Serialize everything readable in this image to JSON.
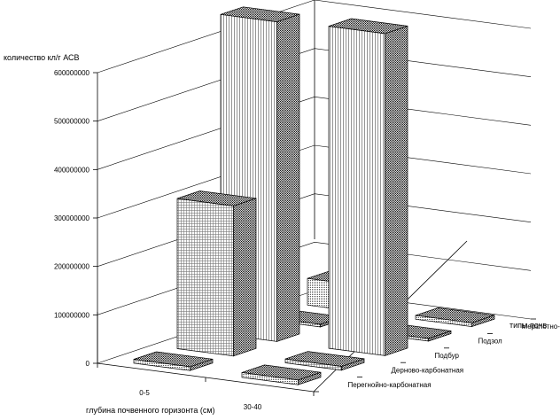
{
  "chart_data": {
    "type": "bar3d",
    "ylabel": "количество кл/г АСВ",
    "xlabel": "глубина почвенного горизонта (см)",
    "zlabel": "типы почв",
    "x_categories": [
      "0-5",
      "30-40"
    ],
    "series": [
      {
        "name": "Перегнойно-карбонатная",
        "values": [
          8000000,
          10000000
        ]
      },
      {
        "name": "Дерново-карбонатная",
        "values": [
          310000000,
          8000000
        ]
      },
      {
        "name": "Подбур",
        "values": [
          660000000,
          665000000
        ]
      },
      {
        "name": "Подзол",
        "values": [
          4000000,
          3000000
        ]
      },
      {
        "name": "Мерзлотно-таёжная",
        "values": [
          55000000,
          8000000
        ]
      }
    ],
    "y_ticks": [
      "0",
      "100000000",
      "200000000",
      "300000000",
      "400000000",
      "500000000",
      "600000000"
    ],
    "ylim": [
      0,
      600000000
    ],
    "grid": true
  }
}
